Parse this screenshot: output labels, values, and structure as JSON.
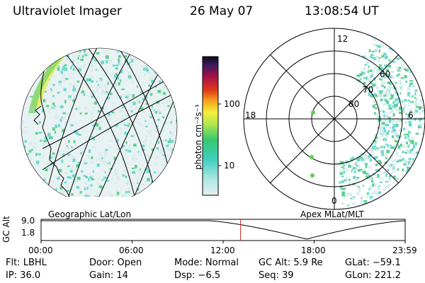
{
  "header": {
    "instrument": "Ultraviolet Imager",
    "date": "26 May 07",
    "time": "13:08:54 UT"
  },
  "colorbar": {
    "unit_label": "photon cm⁻²s⁻¹",
    "ticks": [
      "100",
      "10"
    ]
  },
  "polar_labels": {
    "mlt_top": "12",
    "mlt_left": "18",
    "mlt_right": "6",
    "mlt_bottom": "0",
    "lat_60": "60",
    "lat_70": "70",
    "lat_80": "80"
  },
  "altitude_panel": {
    "ylabel": "GC Alt",
    "y_top": "9.0",
    "y_bottom": "1.8",
    "left_title": "Geographic Lat/Lon",
    "right_title": "Apex MLat/MLT",
    "x_ticks": [
      "00:00",
      "06:00",
      "12:00",
      "18:00",
      "23:59"
    ],
    "current_time_marker_hours": 13.15
  },
  "footer": {
    "row1": {
      "filter": "Flt: LBHL",
      "door": "Door: Open",
      "mode": "Mode: Normal",
      "gc_alt": "GC Alt: 5.9 Re",
      "glat": "GLat: −59.1"
    },
    "row2": {
      "ip": "IP: 36.0",
      "gain": "Gain: 14",
      "dsp": "Dsp:   −6.5",
      "seq": "Seq: 39",
      "glon": "GLon: 221.2"
    }
  },
  "colors": {
    "speckle_light": "#d8ecec",
    "speckle_cyan": "#6fd9d2",
    "speckle_green": "#5ed08e",
    "aurora_yellow": "#e3ee6a",
    "marker_red": "#cc2222"
  }
}
